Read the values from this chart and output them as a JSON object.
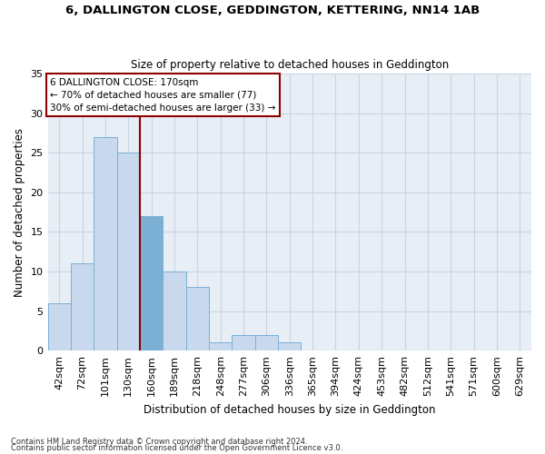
{
  "title": "6, DALLINGTON CLOSE, GEDDINGTON, KETTERING, NN14 1AB",
  "subtitle": "Size of property relative to detached houses in Geddington",
  "xlabel": "Distribution of detached houses by size in Geddington",
  "ylabel": "Number of detached properties",
  "categories": [
    "42sqm",
    "72sqm",
    "101sqm",
    "130sqm",
    "160sqm",
    "189sqm",
    "218sqm",
    "248sqm",
    "277sqm",
    "306sqm",
    "336sqm",
    "365sqm",
    "394sqm",
    "424sqm",
    "453sqm",
    "482sqm",
    "512sqm",
    "541sqm",
    "571sqm",
    "600sqm",
    "629sqm"
  ],
  "values": [
    6,
    11,
    27,
    25,
    17,
    10,
    8,
    1,
    2,
    2,
    1,
    0,
    0,
    0,
    0,
    0,
    0,
    0,
    0,
    0,
    0
  ],
  "bar_color": "#c9d9ed",
  "bar_edge_color": "#7bafd4",
  "highlighted_bar_index": 4,
  "highlighted_bar_color": "#7bafd4",
  "vline_x": 3.5,
  "vline_color": "#8b0000",
  "annotation_text": "6 DALLINGTON CLOSE: 170sqm\n← 70% of detached houses are smaller (77)\n30% of semi-detached houses are larger (33) →",
  "annotation_box_color": "#8b0000",
  "ylim": [
    0,
    35
  ],
  "yticks": [
    0,
    5,
    10,
    15,
    20,
    25,
    30,
    35
  ],
  "footer1": "Contains HM Land Registry data © Crown copyright and database right 2024.",
  "footer2": "Contains public sector information licensed under the Open Government Licence v3.0.",
  "bg_color": "#ffffff",
  "plot_bg_color": "#e8eef5",
  "grid_color": "#c8d4e4"
}
